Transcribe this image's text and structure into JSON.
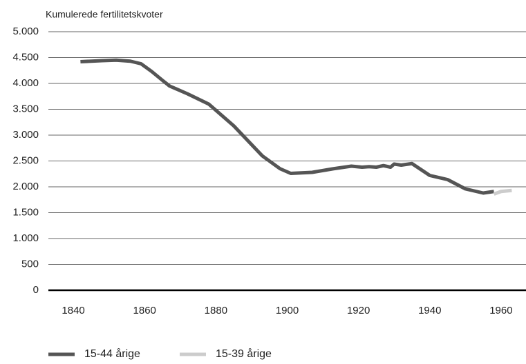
{
  "chart_data": {
    "type": "line",
    "y_label": "Kumulerede fertilitetskvoter",
    "series": [
      {
        "name": "15-44 årige",
        "color": "#555555",
        "x": [
          1842,
          1848,
          1852,
          1856,
          1859,
          1862,
          1865,
          1867,
          1872,
          1878,
          1885,
          1893,
          1898,
          1901,
          1907,
          1913,
          1918,
          1921,
          1923,
          1925,
          1927,
          1929,
          1930,
          1932,
          1935,
          1940,
          1945,
          1950,
          1955,
          1958
        ],
        "values": [
          4420,
          4440,
          4450,
          4430,
          4380,
          4230,
          4060,
          3950,
          3800,
          3600,
          3180,
          2600,
          2350,
          2260,
          2280,
          2350,
          2400,
          2380,
          2390,
          2380,
          2410,
          2380,
          2440,
          2420,
          2450,
          2220,
          2140,
          1960,
          1880,
          1910
        ]
      },
      {
        "name": "15-39 årige",
        "color": "#cccccc",
        "x": [
          1958,
          1960,
          1963
        ],
        "values": [
          1860,
          1910,
          1930
        ]
      }
    ],
    "xlim": [
      1833,
      1967
    ],
    "xticks": [
      1840,
      1860,
      1880,
      1900,
      1920,
      1940,
      1960
    ],
    "ylim": [
      0,
      5000
    ],
    "yticks": [
      0,
      500,
      {
        "value": 1000,
        "label": "1.000"
      },
      {
        "value": 1500,
        "label": "1.500"
      },
      {
        "value": 2000,
        "label": "2.000"
      },
      {
        "value": 2500,
        "label": "2.500"
      },
      {
        "value": 3000,
        "label": "3.000"
      },
      {
        "value": 3500,
        "label": "3.500"
      },
      {
        "value": 4000,
        "label": "4.000"
      },
      {
        "value": 4500,
        "label": "4.500"
      },
      {
        "value": 5000,
        "label": "5.000"
      }
    ],
    "grid": true
  }
}
